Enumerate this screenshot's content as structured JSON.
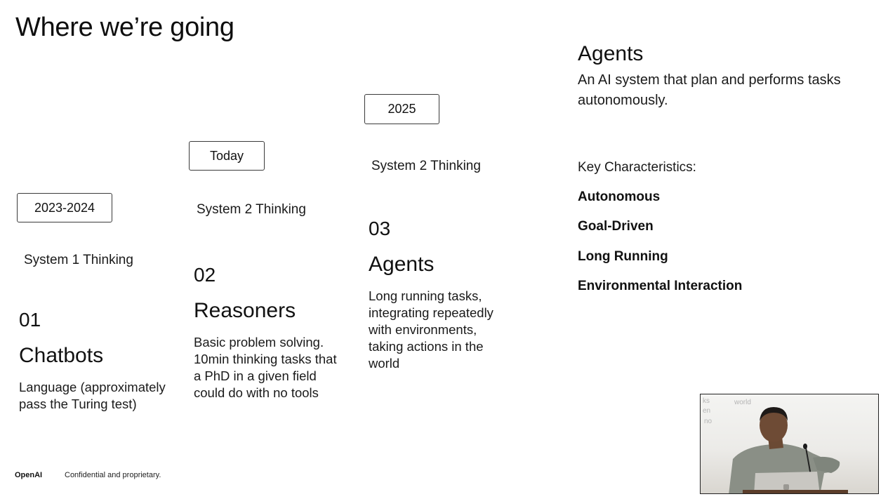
{
  "slide": {
    "title": "Where we’re going"
  },
  "stages": [
    {
      "period": "2023-2024",
      "thinking": "System 1 Thinking",
      "number": "01",
      "name": "Chatbots",
      "description": "Language (approximately pass the Turing test)"
    },
    {
      "period": "Today",
      "thinking": "System 2 Thinking",
      "number": "02",
      "name": "Reasoners",
      "description": "Basic problem solving. 10min thinking tasks that a PhD in a given field could do with no tools"
    },
    {
      "period": "2025",
      "thinking": "System 2 Thinking",
      "number": "03",
      "name": "Agents",
      "description": "Long running tasks, integrating repeatedly with environments, taking actions in the world"
    }
  ],
  "agents_panel": {
    "heading": "Agents",
    "definition": "An AI system that plan and performs tasks autonomously.",
    "key_label": "Key Characteristics:",
    "characteristics": [
      "Autonomous",
      "Goal-Driven",
      "Long Running",
      "Environmental Interaction"
    ]
  },
  "footer": {
    "logo": "OpenAI",
    "note": "Confidential and proprietary."
  },
  "video_overlay": {
    "ghost_text_1": "ks",
    "ghost_text_2": "en",
    "ghost_text_3": "no",
    "ghost_text_4": "world"
  },
  "colors": {
    "background": "#ffffff",
    "text": "#111111",
    "badge_border": "#3a3a3a"
  }
}
